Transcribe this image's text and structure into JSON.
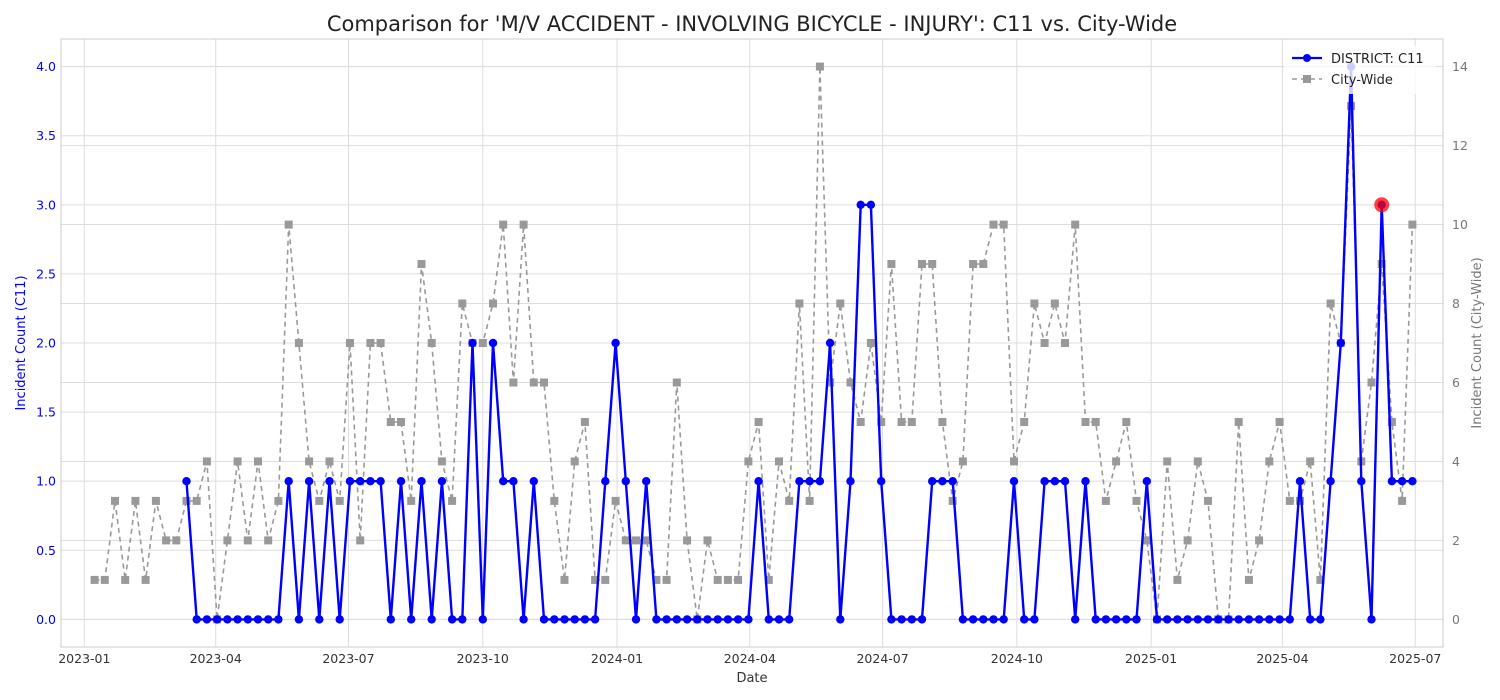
{
  "chart_data": {
    "type": "line",
    "title": "Comparison for 'M/V ACCIDENT - INVOLVING BICYCLE - INJURY': C11 vs. City-Wide",
    "xlabel": "Date",
    "ylabel_left": "Incident Count (C11)",
    "ylabel_right": "Incident Count (City-Wide)",
    "x_ticks": [
      "2023-01",
      "2023-04",
      "2023-07",
      "2023-10",
      "2024-01",
      "2024-04",
      "2024-07",
      "2024-10",
      "2025-01",
      "2025-04",
      "2025-07"
    ],
    "y_left_ticks": [
      "0.0",
      "0.5",
      "1.0",
      "1.5",
      "2.0",
      "2.5",
      "3.0",
      "3.5",
      "4.0"
    ],
    "y_right_ticks": [
      "0",
      "2",
      "4",
      "6",
      "8",
      "10",
      "12",
      "14"
    ],
    "ylim_left": [
      -0.2,
      4.2
    ],
    "ylim_right": [
      -0.7,
      14.7
    ],
    "grid": true,
    "legend_position": "top-right",
    "highlight": {
      "x": "2025-06-08",
      "y": 3,
      "color": "#ff0000"
    },
    "colors": {
      "district": "#0000ff",
      "citywide": "#999999",
      "highlight": "#ff0000"
    },
    "series": [
      {
        "name": "DISTRICT: C11",
        "axis": "left",
        "x": [
          "2023-03-12",
          "2023-03-19",
          "2023-03-26",
          "2023-04-02",
          "2023-04-09",
          "2023-04-16",
          "2023-04-23",
          "2023-04-30",
          "2023-05-07",
          "2023-05-14",
          "2023-05-21",
          "2023-05-28",
          "2023-06-04",
          "2023-06-11",
          "2023-06-18",
          "2023-06-25",
          "2023-07-02",
          "2023-07-09",
          "2023-07-16",
          "2023-07-23",
          "2023-07-30",
          "2023-08-06",
          "2023-08-13",
          "2023-08-20",
          "2023-08-27",
          "2023-09-03",
          "2023-09-10",
          "2023-09-17",
          "2023-09-24",
          "2023-10-01",
          "2023-10-08",
          "2023-10-15",
          "2023-10-22",
          "2023-10-29",
          "2023-11-05",
          "2023-11-12",
          "2023-11-19",
          "2023-11-26",
          "2023-12-03",
          "2023-12-10",
          "2023-12-17",
          "2023-12-24",
          "2023-12-31",
          "2024-01-07",
          "2024-01-14",
          "2024-01-21",
          "2024-01-28",
          "2024-02-04",
          "2024-02-11",
          "2024-02-18",
          "2024-02-25",
          "2024-03-03",
          "2024-03-10",
          "2024-03-17",
          "2024-03-24",
          "2024-03-31",
          "2024-04-07",
          "2024-04-14",
          "2024-04-21",
          "2024-04-28",
          "2024-05-05",
          "2024-05-12",
          "2024-05-19",
          "2024-05-26",
          "2024-06-02",
          "2024-06-09",
          "2024-06-16",
          "2024-06-23",
          "2024-06-30",
          "2024-07-07",
          "2024-07-14",
          "2024-07-21",
          "2024-07-28",
          "2024-08-04",
          "2024-08-11",
          "2024-08-18",
          "2024-08-25",
          "2024-09-01",
          "2024-09-08",
          "2024-09-15",
          "2024-09-22",
          "2024-09-29",
          "2024-10-06",
          "2024-10-13",
          "2024-10-20",
          "2024-10-27",
          "2024-11-03",
          "2024-11-10",
          "2024-11-17",
          "2024-11-24",
          "2024-12-01",
          "2024-12-08",
          "2024-12-15",
          "2024-12-22",
          "2024-12-29",
          "2025-01-05",
          "2025-01-12",
          "2025-01-19",
          "2025-01-26",
          "2025-02-02",
          "2025-02-09",
          "2025-02-16",
          "2025-02-23",
          "2025-03-02",
          "2025-03-09",
          "2025-03-16",
          "2025-03-23",
          "2025-03-30",
          "2025-04-06",
          "2025-04-13",
          "2025-04-20",
          "2025-04-27",
          "2025-05-04",
          "2025-05-11",
          "2025-05-18",
          "2025-05-25",
          "2025-06-01",
          "2025-06-08",
          "2025-06-15",
          "2025-06-22",
          "2025-06-29"
        ],
        "values": [
          1,
          0,
          0,
          0,
          0,
          0,
          0,
          0,
          0,
          0,
          1,
          0,
          1,
          0,
          1,
          0,
          1,
          1,
          1,
          1,
          0,
          1,
          0,
          1,
          0,
          1,
          0,
          0,
          2,
          0,
          2,
          1,
          1,
          0,
          1,
          0,
          0,
          0,
          0,
          0,
          0,
          1,
          2,
          1,
          0,
          1,
          0,
          0,
          0,
          0,
          0,
          0,
          0,
          0,
          0,
          0,
          1,
          0,
          0,
          0,
          1,
          1,
          1,
          2,
          0,
          1,
          3,
          3,
          1,
          0,
          0,
          0,
          0,
          1,
          1,
          1,
          0,
          0,
          0,
          0,
          0,
          1,
          0,
          0,
          1,
          1,
          1,
          0,
          1,
          0,
          0,
          0,
          0,
          0,
          1,
          0,
          0,
          0,
          0,
          0,
          0,
          0,
          0,
          0,
          0,
          0,
          0,
          0,
          0,
          1,
          0,
          0,
          1,
          2,
          4,
          1,
          0,
          3,
          1,
          1,
          1
        ]
      },
      {
        "name": "City-Wide",
        "axis": "right",
        "x": [
          "2023-01-08",
          "2023-01-15",
          "2023-01-22",
          "2023-01-29",
          "2023-02-05",
          "2023-02-12",
          "2023-02-19",
          "2023-02-26",
          "2023-03-05",
          "2023-03-12",
          "2023-03-19",
          "2023-03-26",
          "2023-04-02",
          "2023-04-09",
          "2023-04-16",
          "2023-04-23",
          "2023-04-30",
          "2023-05-07",
          "2023-05-14",
          "2023-05-21",
          "2023-05-28",
          "2023-06-04",
          "2023-06-11",
          "2023-06-18",
          "2023-06-25",
          "2023-07-02",
          "2023-07-09",
          "2023-07-16",
          "2023-07-23",
          "2023-07-30",
          "2023-08-06",
          "2023-08-13",
          "2023-08-20",
          "2023-08-27",
          "2023-09-03",
          "2023-09-10",
          "2023-09-17",
          "2023-09-24",
          "2023-10-01",
          "2023-10-08",
          "2023-10-15",
          "2023-10-22",
          "2023-10-29",
          "2023-11-05",
          "2023-11-12",
          "2023-11-19",
          "2023-11-26",
          "2023-12-03",
          "2023-12-10",
          "2023-12-17",
          "2023-12-24",
          "2023-12-31",
          "2024-01-07",
          "2024-01-14",
          "2024-01-21",
          "2024-01-28",
          "2024-02-04",
          "2024-02-11",
          "2024-02-18",
          "2024-02-25",
          "2024-03-03",
          "2024-03-10",
          "2024-03-17",
          "2024-03-24",
          "2024-03-31",
          "2024-04-07",
          "2024-04-14",
          "2024-04-21",
          "2024-04-28",
          "2024-05-05",
          "2024-05-12",
          "2024-05-19",
          "2024-05-26",
          "2024-06-02",
          "2024-06-09",
          "2024-06-16",
          "2024-06-23",
          "2024-06-30",
          "2024-07-07",
          "2024-07-14",
          "2024-07-21",
          "2024-07-28",
          "2024-08-04",
          "2024-08-11",
          "2024-08-18",
          "2024-08-25",
          "2024-09-01",
          "2024-09-08",
          "2024-09-15",
          "2024-09-22",
          "2024-09-29",
          "2024-10-06",
          "2024-10-13",
          "2024-10-20",
          "2024-10-27",
          "2024-11-03",
          "2024-11-10",
          "2024-11-17",
          "2024-11-24",
          "2024-12-01",
          "2024-12-08",
          "2024-12-15",
          "2024-12-22",
          "2024-12-29",
          "2025-01-05",
          "2025-01-12",
          "2025-01-19",
          "2025-01-26",
          "2025-02-02",
          "2025-02-09",
          "2025-02-16",
          "2025-02-23",
          "2025-03-02",
          "2025-03-09",
          "2025-03-16",
          "2025-03-23",
          "2025-03-30",
          "2025-04-06",
          "2025-04-13",
          "2025-04-20",
          "2025-04-27",
          "2025-05-04",
          "2025-05-11",
          "2025-05-18",
          "2025-05-25",
          "2025-06-01",
          "2025-06-08",
          "2025-06-15",
          "2025-06-22",
          "2025-06-29"
        ],
        "values": [
          1,
          1,
          3,
          1,
          3,
          1,
          3,
          2,
          2,
          3,
          3,
          4,
          0,
          2,
          4,
          2,
          4,
          2,
          3,
          10,
          7,
          4,
          3,
          4,
          3,
          7,
          2,
          7,
          7,
          5,
          5,
          3,
          9,
          7,
          4,
          3,
          8,
          7,
          7,
          8,
          10,
          6,
          10,
          6,
          6,
          3,
          1,
          4,
          5,
          1,
          1,
          3,
          2,
          2,
          2,
          1,
          1,
          6,
          2,
          0,
          2,
          1,
          1,
          1,
          4,
          5,
          1,
          4,
          3,
          8,
          3,
          14,
          6,
          8,
          6,
          5,
          7,
          5,
          9,
          5,
          5,
          9,
          9,
          5,
          3,
          4,
          9,
          9,
          10,
          10,
          4,
          5,
          8,
          7,
          8,
          7,
          10,
          5,
          5,
          3,
          4,
          5,
          3,
          2,
          0,
          4,
          1,
          2,
          4,
          3,
          0,
          0,
          5,
          1,
          2,
          4,
          5,
          3,
          3,
          4,
          1,
          8,
          7,
          13,
          4,
          6,
          9,
          5,
          3,
          10
        ]
      }
    ]
  }
}
